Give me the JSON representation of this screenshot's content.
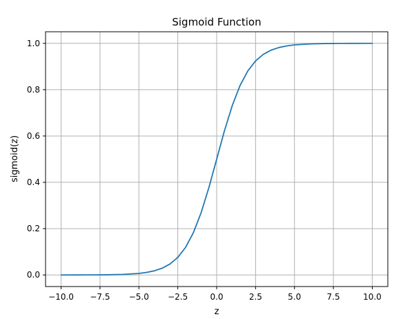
{
  "chart_data": {
    "type": "line",
    "title": "Sigmoid Function",
    "xlabel": "z",
    "ylabel": "sigmoid(z)",
    "xlim": [
      -11.0,
      11.0
    ],
    "ylim": [
      -0.05,
      1.05
    ],
    "grid": true,
    "x_ticks": [
      -10.0,
      -7.5,
      -5.0,
      -2.5,
      0.0,
      2.5,
      5.0,
      7.5,
      10.0
    ],
    "x_tick_labels": [
      "−10.0",
      "−7.5",
      "−5.0",
      "−2.5",
      "0.0",
      "2.5",
      "5.0",
      "7.5",
      "10.0"
    ],
    "y_ticks": [
      0.0,
      0.2,
      0.4,
      0.6,
      0.8,
      1.0
    ],
    "y_tick_labels": [
      "0.0",
      "0.2",
      "0.4",
      "0.6",
      "0.8",
      "1.0"
    ],
    "line_color": "#1f77b4",
    "grid_color": "#b0b0b0",
    "series": [
      {
        "x": [
          -10,
          -9,
          -8,
          -7,
          -6,
          -5,
          -4.5,
          -4,
          -3.5,
          -3,
          -2.5,
          -2,
          -1.5,
          -1,
          -0.5,
          0,
          0.5,
          1,
          1.5,
          2,
          2.5,
          3,
          3.5,
          4,
          4.5,
          5,
          6,
          7,
          8,
          9,
          10
        ],
        "y": [
          0.0,
          0.0001,
          0.0003,
          0.0009,
          0.0025,
          0.0067,
          0.011,
          0.018,
          0.0293,
          0.0474,
          0.0759,
          0.1192,
          0.1824,
          0.2689,
          0.3775,
          0.5,
          0.6225,
          0.7311,
          0.8176,
          0.8808,
          0.9241,
          0.9526,
          0.9707,
          0.982,
          0.989,
          0.9933,
          0.9975,
          0.9991,
          0.9997,
          0.9999,
          1.0
        ]
      }
    ]
  }
}
